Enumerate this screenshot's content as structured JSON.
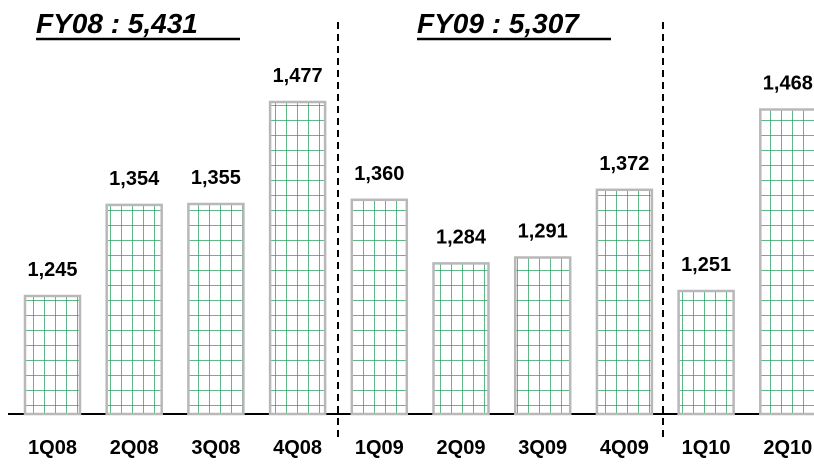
{
  "chart_data": {
    "type": "bar",
    "categories": [
      "1Q08",
      "2Q08",
      "3Q08",
      "4Q08",
      "1Q09",
      "2Q09",
      "3Q09",
      "4Q09",
      "1Q10",
      "2Q10"
    ],
    "values": [
      1245,
      1354,
      1355,
      1477,
      1360,
      1284,
      1291,
      1372,
      1251,
      1468
    ],
    "value_labels": [
      "1,245",
      "1,354",
      "1,355",
      "1,477",
      "1,360",
      "1,284",
      "1,291",
      "1,372",
      "1,251",
      "1,468"
    ],
    "groups": [
      {
        "label": "FY08 : 5,431",
        "categories": [
          "1Q08",
          "2Q08",
          "3Q08",
          "4Q08"
        ]
      },
      {
        "label": "FY09 : 5,307",
        "categories": [
          "1Q09",
          "2Q09",
          "3Q09",
          "4Q09"
        ]
      }
    ],
    "group_separators_after": [
      "4Q08",
      "4Q09"
    ],
    "title": "",
    "xlabel": "",
    "ylabel": "",
    "grid": false,
    "legend": "none",
    "colors": {
      "bar_fill": "#ffffff",
      "bar_pattern": "#1a9a55",
      "bar_border": "#b8b8b8",
      "baseline": "#000000",
      "separator": "#000000",
      "text": "#000000"
    }
  }
}
